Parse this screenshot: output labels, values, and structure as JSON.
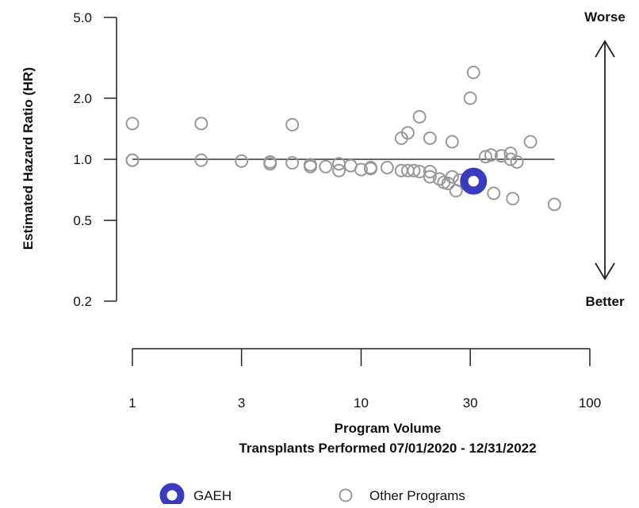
{
  "chart_data": {
    "type": "scatter",
    "title": "",
    "xlabel": "Program Volume",
    "xlabel_sub": "Transplants Performed 07/01/2020 - 12/31/2022",
    "ylabel": "Estimated Hazard Ratio (HR)",
    "x_scale": "log",
    "y_scale": "log",
    "xlim": [
      1,
      100
    ],
    "ylim": [
      0.2,
      5.0
    ],
    "x_ticks": [
      1,
      3,
      10,
      30,
      100
    ],
    "x_tick_labels": [
      "1",
      "3",
      "10",
      "30",
      "100"
    ],
    "y_ticks": [
      0.2,
      0.5,
      1.0,
      2.0,
      5.0
    ],
    "y_tick_labels": [
      "0.2",
      "0.5",
      "1.0",
      "2.0",
      "5.0"
    ],
    "reference_line_y": 1.0,
    "arrow_labels": {
      "top": "Worse",
      "bottom": "Better"
    },
    "legend_placement": "bottom",
    "series": [
      {
        "name": "GAEH",
        "color": "#3b3bbf",
        "points": [
          [
            31,
            0.78
          ]
        ]
      },
      {
        "name": "Other Programs",
        "color": "#999999",
        "points": [
          [
            1,
            1.5
          ],
          [
            1,
            0.99
          ],
          [
            1,
            0.99
          ],
          [
            2,
            1.5
          ],
          [
            2,
            0.99
          ],
          [
            3,
            0.98
          ],
          [
            4,
            0.97
          ],
          [
            4,
            0.95
          ],
          [
            5,
            1.48
          ],
          [
            5,
            0.96
          ],
          [
            6,
            0.94
          ],
          [
            6,
            0.92
          ],
          [
            7,
            0.92
          ],
          [
            8,
            0.95
          ],
          [
            8,
            0.88
          ],
          [
            9,
            0.93
          ],
          [
            10,
            0.89
          ],
          [
            11,
            0.9
          ],
          [
            11,
            0.91
          ],
          [
            13,
            0.91
          ],
          [
            15,
            0.88
          ],
          [
            15,
            1.27
          ],
          [
            16,
            0.88
          ],
          [
            16,
            1.35
          ],
          [
            17,
            0.88
          ],
          [
            18,
            1.62
          ],
          [
            18,
            0.87
          ],
          [
            20,
            0.82
          ],
          [
            20,
            0.87
          ],
          [
            20,
            1.27
          ],
          [
            22,
            0.8
          ],
          [
            23,
            0.77
          ],
          [
            24,
            0.76
          ],
          [
            25,
            0.82
          ],
          [
            25,
            1.22
          ],
          [
            26,
            0.7
          ],
          [
            27,
            0.79
          ],
          [
            30,
            2.0
          ],
          [
            31,
            2.68
          ],
          [
            31,
            0.78
          ],
          [
            35,
            1.03
          ],
          [
            37,
            1.05
          ],
          [
            38,
            0.68
          ],
          [
            41,
            1.04
          ],
          [
            45,
            1.07
          ],
          [
            45,
            1.0
          ],
          [
            46,
            0.64
          ],
          [
            48,
            0.97
          ],
          [
            55,
            1.22
          ],
          [
            70,
            0.6
          ]
        ]
      }
    ]
  }
}
